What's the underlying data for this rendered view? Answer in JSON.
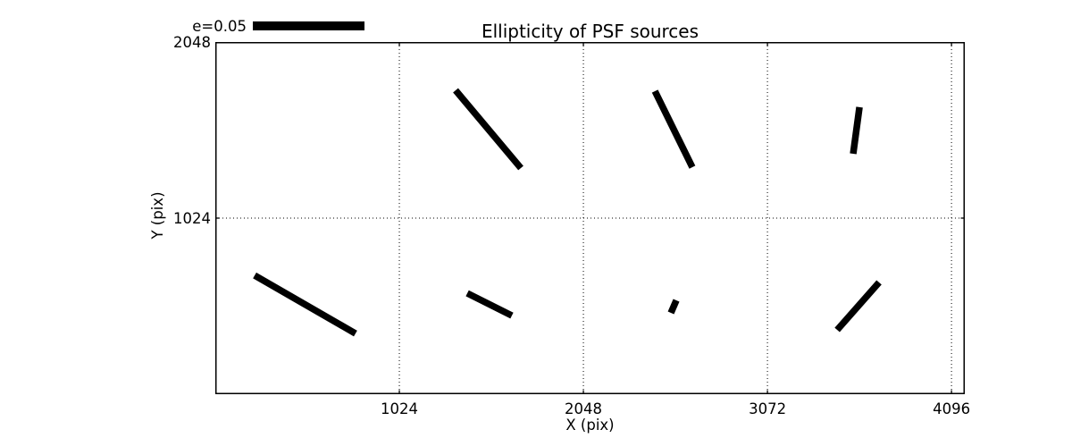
{
  "chart_data": {
    "type": "scatter",
    "subtype": "ellipticity-whisker-map",
    "title": "Ellipticity of PSF sources",
    "xlabel": "X (pix)",
    "ylabel": "Y (pix)",
    "xlim": [
      0,
      4170
    ],
    "ylim": [
      0,
      2048
    ],
    "xticks": [
      1024,
      2048,
      3072,
      4096
    ],
    "yticks": [
      1024,
      2048
    ],
    "grid": {
      "style": "dotted",
      "x_at": [
        1024,
        2048,
        3072,
        4096
      ],
      "y_at": [
        1024
      ]
    },
    "legend": {
      "label": "e=0.05",
      "e_value": 0.05
    },
    "whiskers": [
      {
        "x1": 1337,
        "y1": 1767,
        "x2": 1700,
        "y2": 1315,
        "cx": 1519,
        "cy": 1541,
        "e": 0.045,
        "angle_deg": -51
      },
      {
        "x1": 2446,
        "y1": 1762,
        "x2": 2654,
        "y2": 1320,
        "cx": 2550,
        "cy": 1541,
        "e": 0.038,
        "angle_deg": -65
      },
      {
        "x1": 3584,
        "y1": 1669,
        "x2": 3549,
        "y2": 1398,
        "cx": 3566,
        "cy": 1534,
        "e": 0.021,
        "angle_deg": 83
      },
      {
        "x1": 219,
        "y1": 691,
        "x2": 780,
        "y2": 353,
        "cx": 500,
        "cy": 522,
        "e": 0.052,
        "angle_deg": -31
      },
      {
        "x1": 1402,
        "y1": 587,
        "x2": 1650,
        "y2": 457,
        "cx": 1526,
        "cy": 522,
        "e": 0.022,
        "angle_deg": -28
      },
      {
        "x1": 2535,
        "y1": 473,
        "x2": 2565,
        "y2": 546,
        "cx": 2550,
        "cy": 510,
        "e": 0.006,
        "angle_deg": 68
      },
      {
        "x1": 3460,
        "y1": 374,
        "x2": 3693,
        "y2": 650,
        "cx": 3577,
        "cy": 512,
        "e": 0.028,
        "angle_deg": 50
      }
    ],
    "colors": {
      "whisker": "#000000",
      "grid": "#000000",
      "axis": "#000000",
      "background": "#ffffff"
    }
  }
}
